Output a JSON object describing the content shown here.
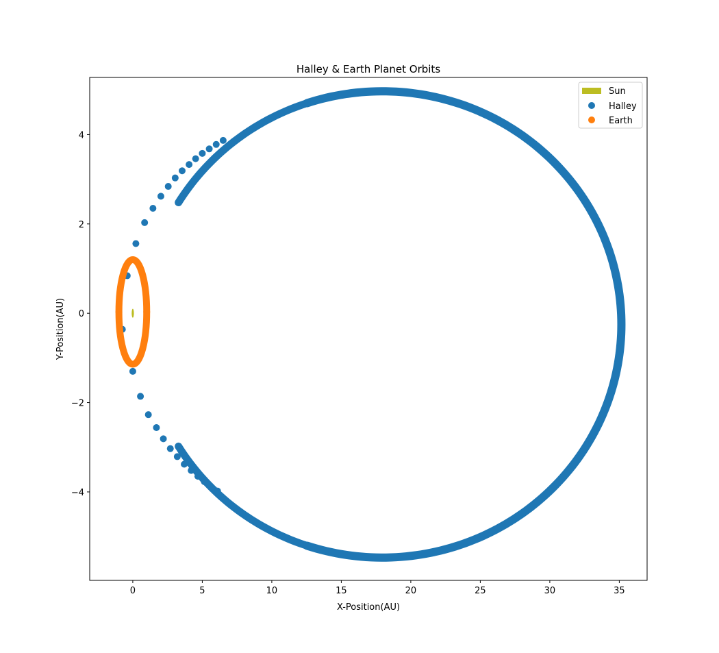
{
  "chart_data": {
    "type": "scatter",
    "title": "Halley & Earth Planet Orbits",
    "xlabel": "X-Position(AU)",
    "ylabel": "Y-Position(AU)",
    "xlim": [
      -3.1,
      37.0
    ],
    "ylim": [
      -5.98,
      5.28
    ],
    "xticks": [
      0,
      5,
      10,
      15,
      20,
      25,
      30,
      35
    ],
    "yticks": [
      -4,
      -2,
      0,
      2,
      4
    ],
    "grid": false,
    "legend_position": "top-right",
    "colors": {
      "sun": "#bcbd22",
      "halley": "#1f77b4",
      "earth": "#ff7f0e"
    },
    "series": [
      {
        "name": "Sun",
        "marker": "ellipse",
        "x": [
          0
        ],
        "y": [
          0
        ],
        "width": [
          0.16
        ],
        "height": [
          0.2
        ]
      },
      {
        "name": "Halley",
        "marker": "circle",
        "orbit": {
          "center_x": 17.95,
          "center_y": -0.25,
          "semi_major_x": 17.2,
          "semi_minor_y": 5.22,
          "perihelion_x": 0.75,
          "aphelion_x": 35.15
        },
        "x": [
          0.0,
          0.22,
          0.85,
          1.45,
          2.02,
          2.55,
          3.05,
          3.55,
          4.05,
          4.52,
          5.0,
          5.5,
          6.0,
          6.5,
          -0.4,
          -0.75,
          0.55,
          1.12,
          1.7,
          2.2,
          2.7,
          3.2,
          3.7,
          4.2,
          4.68,
          5.15,
          5.62,
          6.1
        ],
        "y": [
          -1.3,
          1.56,
          2.03,
          2.35,
          2.62,
          2.84,
          3.03,
          3.19,
          3.33,
          3.46,
          3.58,
          3.68,
          3.78,
          3.87,
          0.84,
          -0.36,
          -1.86,
          -2.27,
          -2.56,
          -2.81,
          -3.03,
          -3.21,
          -3.38,
          -3.52,
          -3.65,
          -3.77,
          -3.88,
          -3.98
        ]
      },
      {
        "name": "Earth",
        "marker": "circle",
        "orbit": {
          "center_x": 0.0,
          "center_y": 0.03,
          "semi_axis_x": 1.0,
          "semi_axis_y": 1.17
        },
        "x": [
          1.0,
          0.0,
          -1.0,
          0.0
        ],
        "y": [
          0.03,
          1.2,
          0.03,
          -1.14
        ]
      }
    ]
  }
}
